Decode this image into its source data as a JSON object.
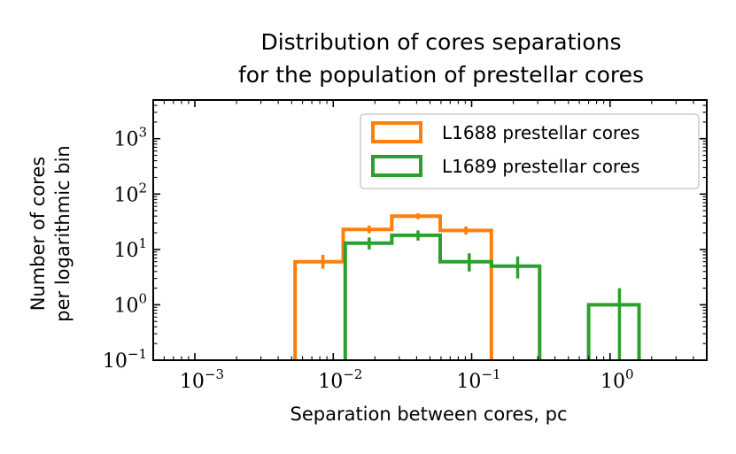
{
  "chart_data": {
    "type": "histogram-step",
    "title": [
      "Distribution of cores separations",
      "for the population of prestellar cores"
    ],
    "xlabel": "Separation between cores, pc",
    "ylabel": [
      "Number of cores",
      "per logarithmic bin"
    ],
    "xscale": "log",
    "yscale": "log",
    "xlim": [
      0.0005,
      5
    ],
    "ylim": [
      0.1,
      5000
    ],
    "xticks": [
      {
        "value": 0.001,
        "base": "10",
        "exp": "−3"
      },
      {
        "value": 0.01,
        "base": "10",
        "exp": "−2"
      },
      {
        "value": 0.1,
        "base": "10",
        "exp": "−1"
      },
      {
        "value": 1,
        "base": "10",
        "exp": "0"
      }
    ],
    "yticks": [
      {
        "value": 0.1,
        "base": "10",
        "exp": "−1"
      },
      {
        "value": 1,
        "base": "10",
        "exp": "0"
      },
      {
        "value": 10,
        "base": "10",
        "exp": "1"
      },
      {
        "value": 100,
        "base": "10",
        "exp": "2"
      },
      {
        "value": 1000,
        "base": "10",
        "exp": "3"
      }
    ],
    "legend_position": "top-right",
    "series": [
      {
        "name": "L1688 prestellar cores",
        "color": "#ff7f0e",
        "edges": [
          0.0053,
          0.0118,
          0.0265,
          0.0592,
          0.1388
        ],
        "values": [
          6,
          23,
          40,
          22
        ],
        "errors": [
          {
            "x": 0.0084,
            "y": 6,
            "lo": 4.5,
            "hi": 8.0
          },
          {
            "x": 0.0182,
            "y": 23,
            "lo": 19.5,
            "hi": 27
          },
          {
            "x": 0.041,
            "y": 40,
            "lo": 35,
            "hi": 45
          },
          {
            "x": 0.091,
            "y": 22,
            "lo": 18.5,
            "hi": 26
          }
        ]
      },
      {
        "name": "L1689 prestellar cores",
        "color": "#2ca02c",
        "edges": [
          0.0122,
          0.0265,
          0.0592,
          0.1388,
          0.31
        ],
        "values": [
          13,
          18,
          6,
          5
        ],
        "extra_bins": [
          {
            "edges": [
              0.7,
              1.62
            ],
            "value": 1
          }
        ],
        "errors": [
          {
            "x": 0.0182,
            "y": 13,
            "lo": 10,
            "hi": 16.5
          },
          {
            "x": 0.041,
            "y": 18,
            "lo": 14.5,
            "hi": 22
          },
          {
            "x": 0.096,
            "y": 6,
            "lo": 4,
            "hi": 8.5
          },
          {
            "x": 0.215,
            "y": 5,
            "lo": 3,
            "hi": 7.5
          },
          {
            "x": 1.17,
            "y": 1,
            "lo": 0.1,
            "hi": 2.0
          }
        ]
      }
    ]
  }
}
